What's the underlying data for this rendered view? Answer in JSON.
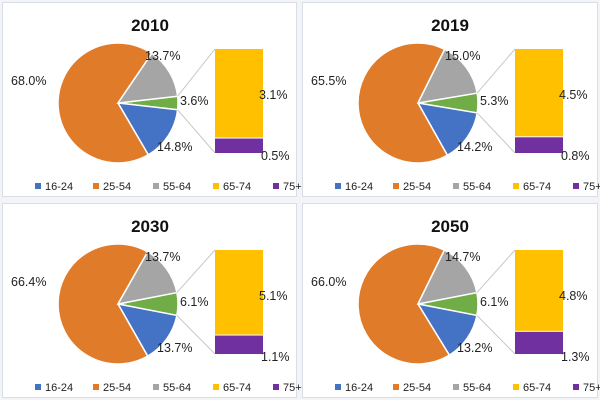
{
  "categories": [
    "16-24",
    "25-54",
    "55-64",
    "65-74",
    "75+"
  ],
  "colors": [
    "#4472c4",
    "#e07b2a",
    "#a5a5a5",
    "#ffc000",
    "#7030a0"
  ],
  "connector_color": "#c7c7c7",
  "chart_data": [
    {
      "type": "bar-of-pie",
      "title": "2010",
      "pie": [
        {
          "category": "16-24",
          "value": 14.8,
          "label": "14.8%"
        },
        {
          "category": "25-54",
          "value": 68.0,
          "label": "68.0%"
        },
        {
          "category": "55-64",
          "value": 13.7,
          "label": "13.7%"
        },
        {
          "category": "65-74 + 75+",
          "value": 3.6,
          "label": "3.6%"
        }
      ],
      "bar": [
        {
          "category": "65-74",
          "value": 3.1,
          "label": "3.1%"
        },
        {
          "category": "75+",
          "value": 0.5,
          "label": "0.5%"
        }
      ]
    },
    {
      "type": "bar-of-pie",
      "title": "2019",
      "pie": [
        {
          "category": "16-24",
          "value": 14.2,
          "label": "14.2%"
        },
        {
          "category": "25-54",
          "value": 65.5,
          "label": "65.5%"
        },
        {
          "category": "55-64",
          "value": 15.0,
          "label": "15.0%"
        },
        {
          "category": "65-74 + 75+",
          "value": 5.3,
          "label": "5.3%"
        }
      ],
      "bar": [
        {
          "category": "65-74",
          "value": 4.5,
          "label": "4.5%"
        },
        {
          "category": "75+",
          "value": 0.8,
          "label": "0.8%"
        }
      ]
    },
    {
      "type": "bar-of-pie",
      "title": "2030",
      "pie": [
        {
          "category": "16-24",
          "value": 13.7,
          "label": "13.7%"
        },
        {
          "category": "25-54",
          "value": 66.4,
          "label": "66.4%"
        },
        {
          "category": "55-64",
          "value": 13.7,
          "label": "13.7%"
        },
        {
          "category": "65-74 + 75+",
          "value": 6.1,
          "label": "6.1%"
        }
      ],
      "bar": [
        {
          "category": "65-74",
          "value": 5.1,
          "label": "5.1%"
        },
        {
          "category": "75+",
          "value": 1.1,
          "label": "1.1%"
        }
      ]
    },
    {
      "type": "bar-of-pie",
      "title": "2050",
      "pie": [
        {
          "category": "16-24",
          "value": 13.2,
          "label": "13.2%"
        },
        {
          "category": "25-54",
          "value": 66.0,
          "label": "66.0%"
        },
        {
          "category": "55-64",
          "value": 14.7,
          "label": "14.7%"
        },
        {
          "category": "65-74 + 75+",
          "value": 6.1,
          "label": "6.1%"
        }
      ],
      "bar": [
        {
          "category": "65-74",
          "value": 4.8,
          "label": "4.8%"
        },
        {
          "category": "75+",
          "value": 1.3,
          "label": "1.3%"
        }
      ]
    }
  ]
}
